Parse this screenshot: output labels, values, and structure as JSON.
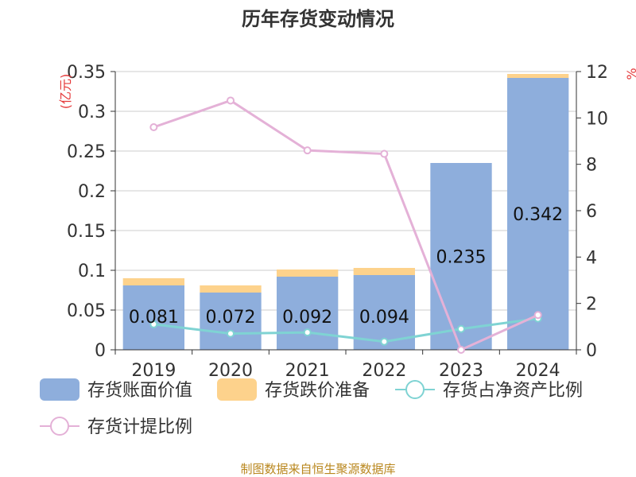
{
  "title": "历年存货变动情况",
  "source": "制图数据来自恒生聚源数据库",
  "colors": {
    "book_value": "#8eaedc",
    "impairment": "#fdd28c",
    "ratio_net_assets": "#7fd3d3",
    "provision_ratio": "#e4b1d7"
  },
  "chart_data": {
    "type": "bar",
    "title": "历年存货变动情况",
    "categories": [
      "2019",
      "2020",
      "2021",
      "2022",
      "2023",
      "2024"
    ],
    "left_axis": {
      "unit": "(亿元)",
      "ylim": [
        0,
        0.35
      ],
      "ticks": [
        "0",
        "0.05",
        "0.1",
        "0.15",
        "0.2",
        "0.25",
        "0.3",
        "0.35"
      ]
    },
    "right_axis": {
      "unit": "%",
      "ylim": [
        0,
        12
      ],
      "ticks": [
        "0",
        "2",
        "4",
        "6",
        "8",
        "10",
        "12"
      ]
    },
    "grid": true,
    "legend_position": "bottom",
    "series": [
      {
        "name": "存货账面价值",
        "type": "bar",
        "axis": "left",
        "values": [
          0.081,
          0.072,
          0.092,
          0.094,
          0.235,
          0.342
        ],
        "labels": [
          "0.081",
          "0.072",
          "0.092",
          "0.094",
          "0.235",
          "0.342"
        ]
      },
      {
        "name": "存货跌价准备",
        "type": "bar",
        "axis": "left",
        "values": [
          0.009,
          0.009,
          0.009,
          0.009,
          0.0,
          0.005
        ]
      },
      {
        "name": "存货占净资产比例",
        "type": "line",
        "axis": "right",
        "values": [
          1.1,
          0.7,
          0.75,
          0.35,
          0.9,
          1.35
        ]
      },
      {
        "name": "存货计提比例",
        "type": "line",
        "axis": "right",
        "values": [
          9.6,
          10.75,
          8.6,
          8.45,
          0.0,
          1.5
        ]
      }
    ]
  }
}
